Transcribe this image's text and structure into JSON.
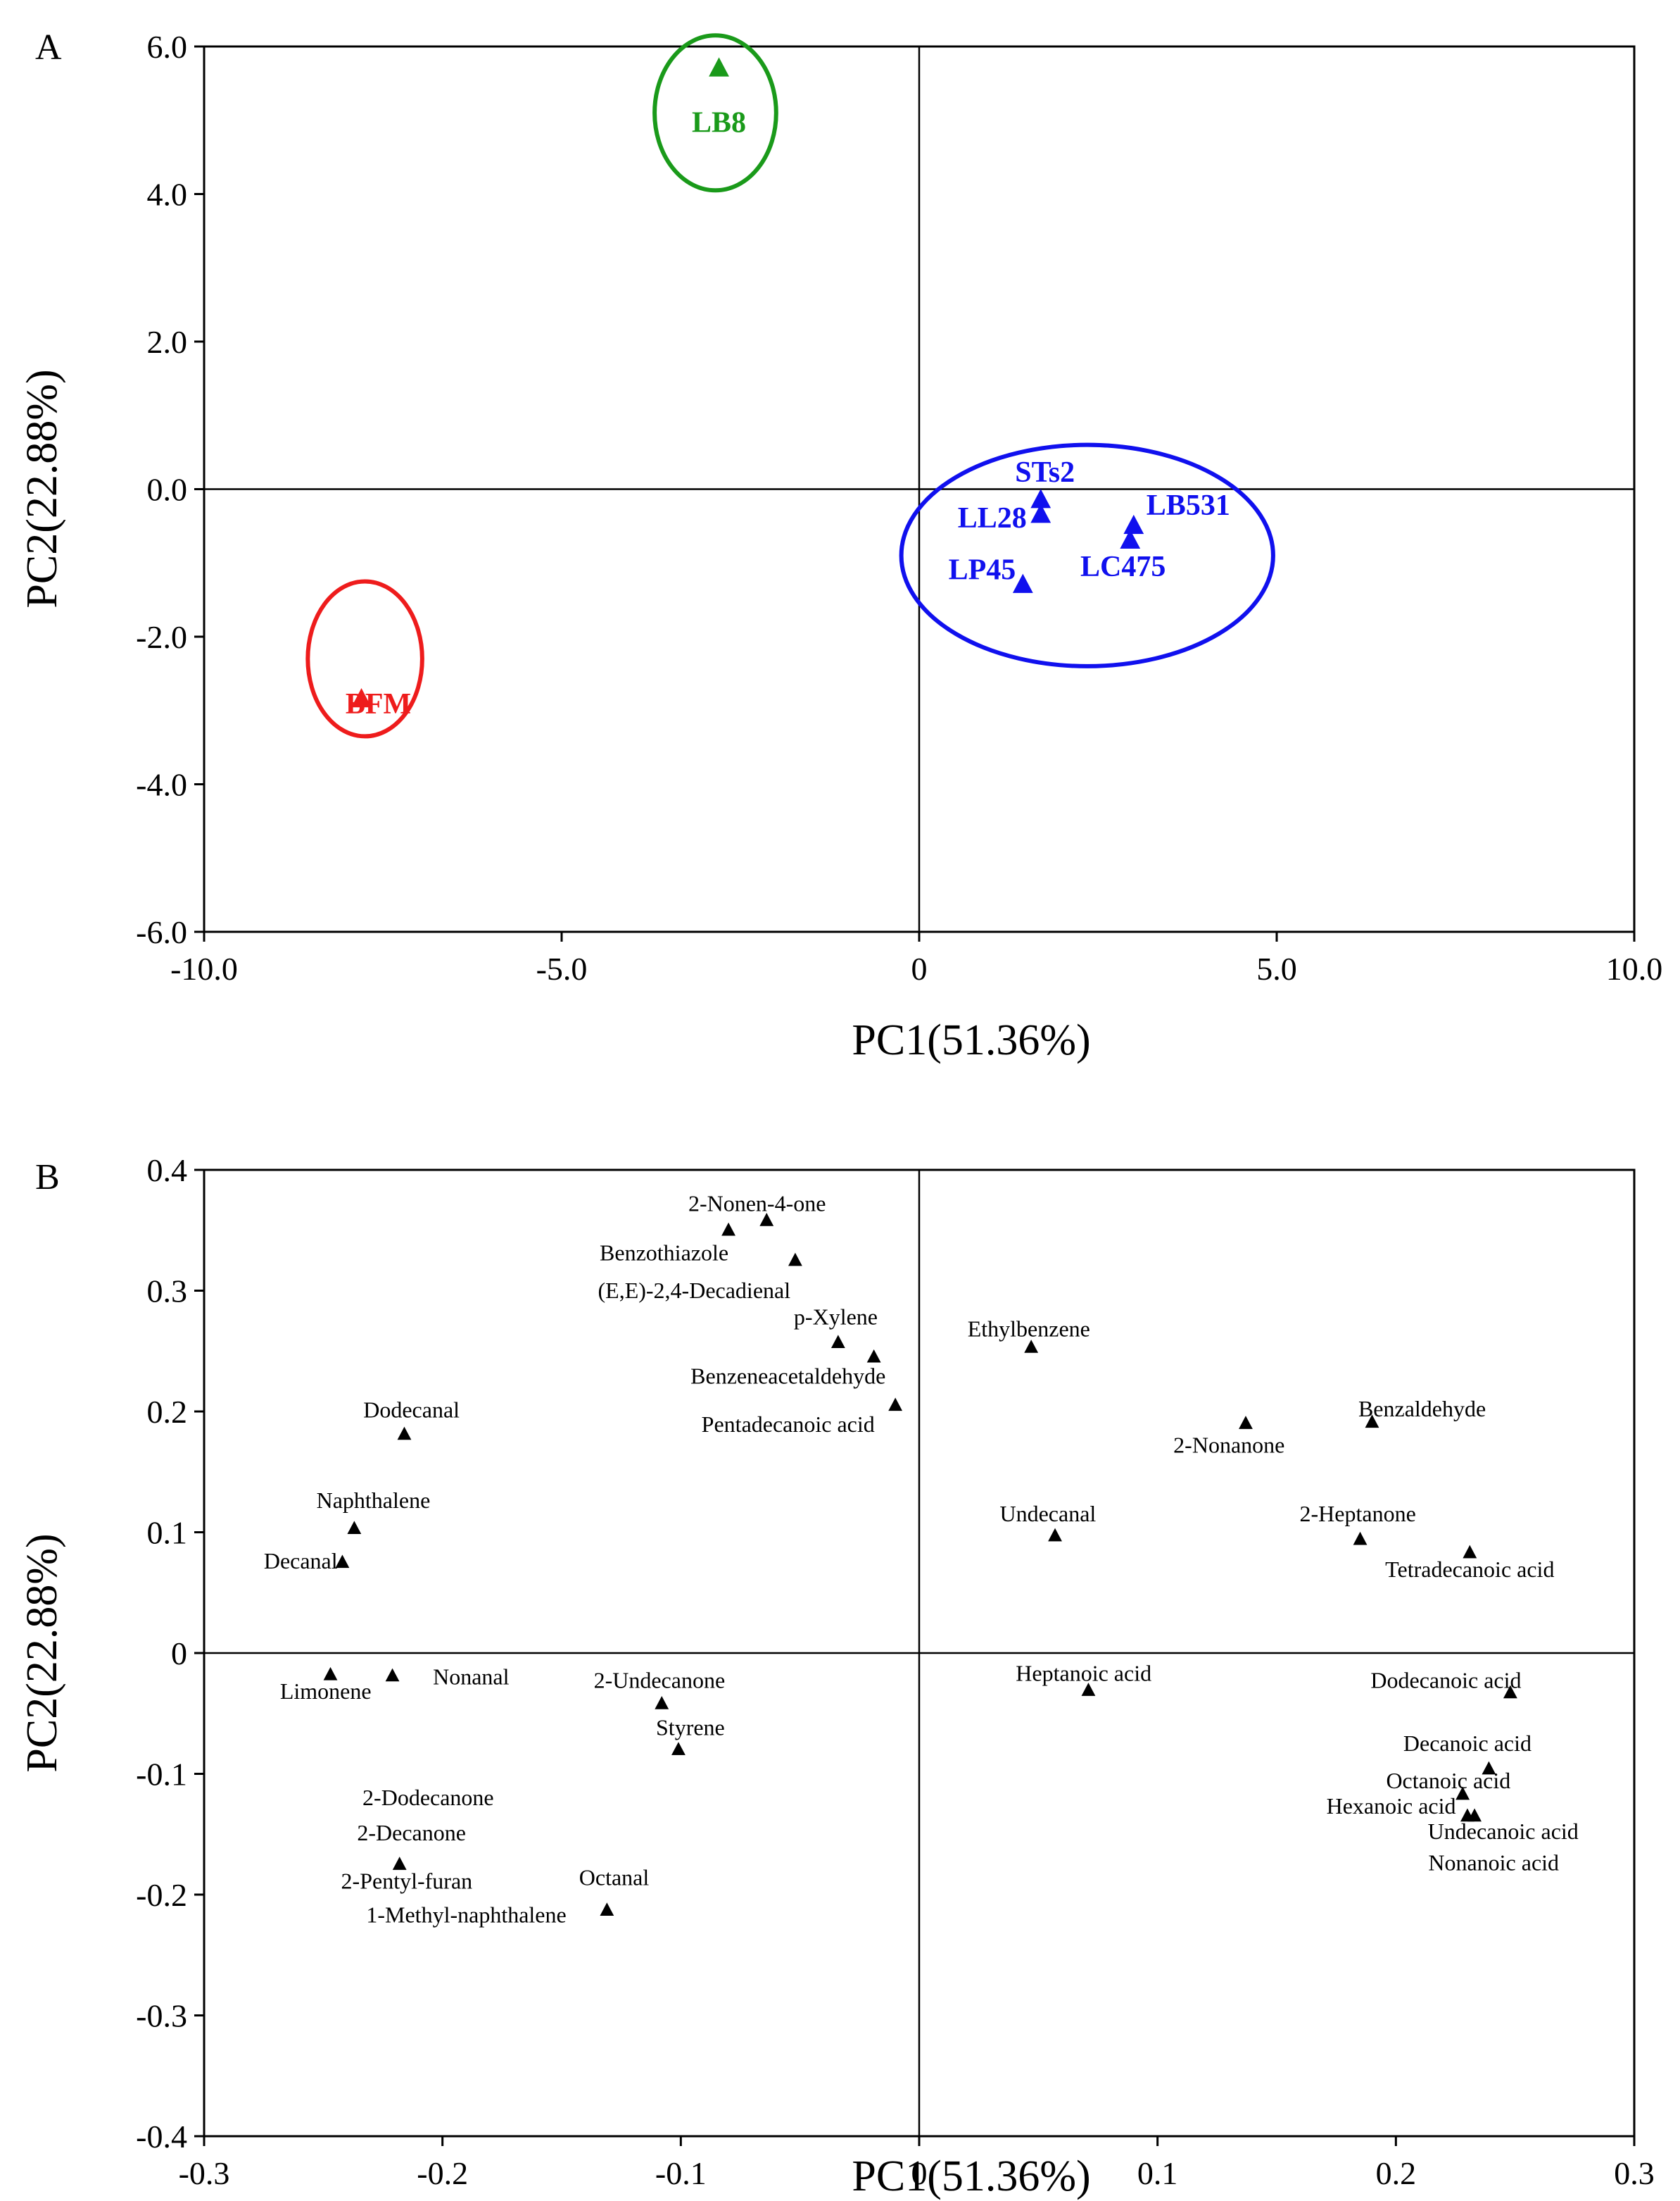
{
  "chart_data": [
    {
      "type": "scatter",
      "panel": "A",
      "title": "",
      "xlabel": "PC1(51.36%)",
      "ylabel": "PC2(22.88%)",
      "xlim": [
        -10,
        10
      ],
      "ylim": [
        -6,
        6
      ],
      "xticks": [
        -10,
        -5,
        0,
        5,
        10
      ],
      "yticks": [
        -6,
        -4,
        -2,
        0,
        2,
        4,
        6
      ],
      "tick_decimals": 1,
      "grid": false,
      "points": [
        {
          "label": "LB8",
          "x": -2.8,
          "y": 5.7,
          "color": "#1a9a1a"
        },
        {
          "label": "BFM",
          "x": -7.8,
          "y": -2.85,
          "color": "#ee1c1c"
        },
        {
          "label": "STs2",
          "x": 1.7,
          "y": -0.15,
          "color": "#1010ee"
        },
        {
          "label": "LL28",
          "x": 1.7,
          "y": -0.35,
          "color": "#1010ee"
        },
        {
          "label": "LB531",
          "x": 3.0,
          "y": -0.5,
          "color": "#1010ee"
        },
        {
          "label": "LC475",
          "x": 2.95,
          "y": -0.7,
          "color": "#1010ee"
        },
        {
          "label": "LP45",
          "x": 1.45,
          "y": -1.3,
          "color": "#1010ee"
        }
      ],
      "groups": [
        {
          "name": "LB8-group",
          "color": "#1a9a1a",
          "cx": -2.85,
          "cy": 5.1,
          "rx": 0.85,
          "ry": 1.05
        },
        {
          "name": "BFM-group",
          "color": "#ee1c1c",
          "cx": -7.75,
          "cy": -2.3,
          "rx": 0.8,
          "ry": 1.05
        },
        {
          "name": "cluster-group",
          "color": "#1010ee",
          "cx": 2.35,
          "cy": -0.9,
          "rx": 2.6,
          "ry": 1.5
        }
      ]
    },
    {
      "type": "scatter",
      "panel": "B",
      "title": "",
      "xlabel": "PC1(51.36%)",
      "ylabel": "PC2(22.88%)",
      "xlim": [
        -0.3,
        0.3
      ],
      "ylim": [
        -0.4,
        0.4
      ],
      "xticks": [
        -0.3,
        -0.2,
        -0.1,
        0,
        0.1,
        0.2,
        0.3
      ],
      "yticks": [
        -0.4,
        -0.3,
        -0.2,
        -0.1,
        0,
        0.1,
        0.2,
        0.3,
        0.4
      ],
      "tick_decimals": 1,
      "grid": false,
      "markers": [
        {
          "x": -0.08,
          "y": 0.35
        },
        {
          "x": -0.064,
          "y": 0.358
        },
        {
          "x": -0.052,
          "y": 0.325
        },
        {
          "x": -0.034,
          "y": 0.257
        },
        {
          "x": -0.019,
          "y": 0.245
        },
        {
          "x": -0.01,
          "y": 0.205
        },
        {
          "x": 0.047,
          "y": 0.253
        },
        {
          "x": -0.216,
          "y": 0.181
        },
        {
          "x": -0.237,
          "y": 0.103
        },
        {
          "x": -0.242,
          "y": 0.075
        },
        {
          "x": 0.137,
          "y": 0.19
        },
        {
          "x": 0.19,
          "y": 0.191
        },
        {
          "x": 0.057,
          "y": 0.097
        },
        {
          "x": 0.185,
          "y": 0.094
        },
        {
          "x": 0.231,
          "y": 0.083
        },
        {
          "x": -0.247,
          "y": -0.018
        },
        {
          "x": -0.221,
          "y": -0.019
        },
        {
          "x": -0.108,
          "y": -0.042
        },
        {
          "x": -0.101,
          "y": -0.08
        },
        {
          "x": 0.071,
          "y": -0.031
        },
        {
          "x": 0.248,
          "y": -0.033
        },
        {
          "x": 0.239,
          "y": -0.096
        },
        {
          "x": 0.228,
          "y": -0.117
        },
        {
          "x": 0.23,
          "y": -0.135
        },
        {
          "x": 0.233,
          "y": -0.135
        },
        {
          "x": -0.218,
          "y": -0.175
        },
        {
          "x": -0.131,
          "y": -0.213
        }
      ],
      "labels": [
        {
          "text": "2-Nonen-4-one",
          "x": -0.068,
          "y": 0.366,
          "anchor": "middle",
          "size": "large"
        },
        {
          "text": "Benzothiazole",
          "x": -0.08,
          "y": 0.325,
          "anchor": "end",
          "size": "large"
        },
        {
          "text": "(E,E)-2,4-Decadienal",
          "x": -0.054,
          "y": 0.294,
          "anchor": "end",
          "size": "large"
        },
        {
          "text": "p-Xylene",
          "x": -0.035,
          "y": 0.272,
          "anchor": "middle",
          "size": "large"
        },
        {
          "text": "Benzeneacetaldehyde",
          "x": -0.055,
          "y": 0.223,
          "anchor": "middle",
          "size": "large"
        },
        {
          "text": "Pentadecanoic acid",
          "x": -0.055,
          "y": 0.183,
          "anchor": "middle",
          "size": "large"
        },
        {
          "text": "Ethylbenzene",
          "x": 0.046,
          "y": 0.262,
          "anchor": "middle",
          "size": "small"
        },
        {
          "text": "Dodecanal",
          "x": -0.213,
          "y": 0.195,
          "anchor": "middle",
          "size": "large"
        },
        {
          "text": "Naphthalene",
          "x": -0.229,
          "y": 0.12,
          "anchor": "middle",
          "size": "large"
        },
        {
          "text": "Decanal",
          "x": -0.244,
          "y": 0.07,
          "anchor": "end",
          "size": "small"
        },
        {
          "text": "Benzaldehyde",
          "x": 0.211,
          "y": 0.196,
          "anchor": "middle",
          "size": "large"
        },
        {
          "text": "2-Nonanone",
          "x": 0.13,
          "y": 0.166,
          "anchor": "middle",
          "size": "large"
        },
        {
          "text": "Undecanal",
          "x": 0.054,
          "y": 0.109,
          "anchor": "middle",
          "size": "large"
        },
        {
          "text": "2-Heptanone",
          "x": 0.184,
          "y": 0.109,
          "anchor": "middle",
          "size": "large"
        },
        {
          "text": "Tetradecanoic acid",
          "x": 0.231,
          "y": 0.063,
          "anchor": "middle",
          "size": "large"
        },
        {
          "text": "Limonene",
          "x": -0.249,
          "y": -0.038,
          "anchor": "middle",
          "size": "large"
        },
        {
          "text": "Nonanal",
          "x": -0.188,
          "y": -0.026,
          "anchor": "middle",
          "size": "large"
        },
        {
          "text": "2-Undecanone",
          "x": -0.109,
          "y": -0.029,
          "anchor": "middle",
          "size": "large"
        },
        {
          "text": "Styrene",
          "x": -0.096,
          "y": -0.068,
          "anchor": "middle",
          "size": "large"
        },
        {
          "text": "Heptanoic acid",
          "x": 0.069,
          "y": -0.023,
          "anchor": "middle",
          "size": "large"
        },
        {
          "text": "Dodecanoic acid",
          "x": 0.221,
          "y": -0.029,
          "anchor": "middle",
          "size": "large"
        },
        {
          "text": "Decanoic acid",
          "x": 0.23,
          "y": -0.081,
          "anchor": "middle",
          "size": "large"
        },
        {
          "text": "Octanoic acid",
          "x": 0.222,
          "y": -0.112,
          "anchor": "middle",
          "size": "large"
        },
        {
          "text": "Hexanoic acid",
          "x": 0.198,
          "y": -0.133,
          "anchor": "middle",
          "size": "large"
        },
        {
          "text": "Undecanoic acid",
          "x": 0.245,
          "y": -0.154,
          "anchor": "middle",
          "size": "large"
        },
        {
          "text": "Nonanoic acid",
          "x": 0.241,
          "y": -0.18,
          "anchor": "middle",
          "size": "large"
        },
        {
          "text": "2-Dodecanone",
          "x": -0.206,
          "y": -0.126,
          "anchor": "middle",
          "size": "large"
        },
        {
          "text": "2-Decanone",
          "x": -0.213,
          "y": -0.155,
          "anchor": "middle",
          "size": "large"
        },
        {
          "text": "2-Pentyl-furan",
          "x": -0.215,
          "y": -0.195,
          "anchor": "middle",
          "size": "large"
        },
        {
          "text": "Octanal",
          "x": -0.128,
          "y": -0.192,
          "anchor": "middle",
          "size": "large"
        },
        {
          "text": "1-Methyl-naphthalene",
          "x": -0.19,
          "y": -0.223,
          "anchor": "middle",
          "size": "large"
        }
      ]
    }
  ]
}
